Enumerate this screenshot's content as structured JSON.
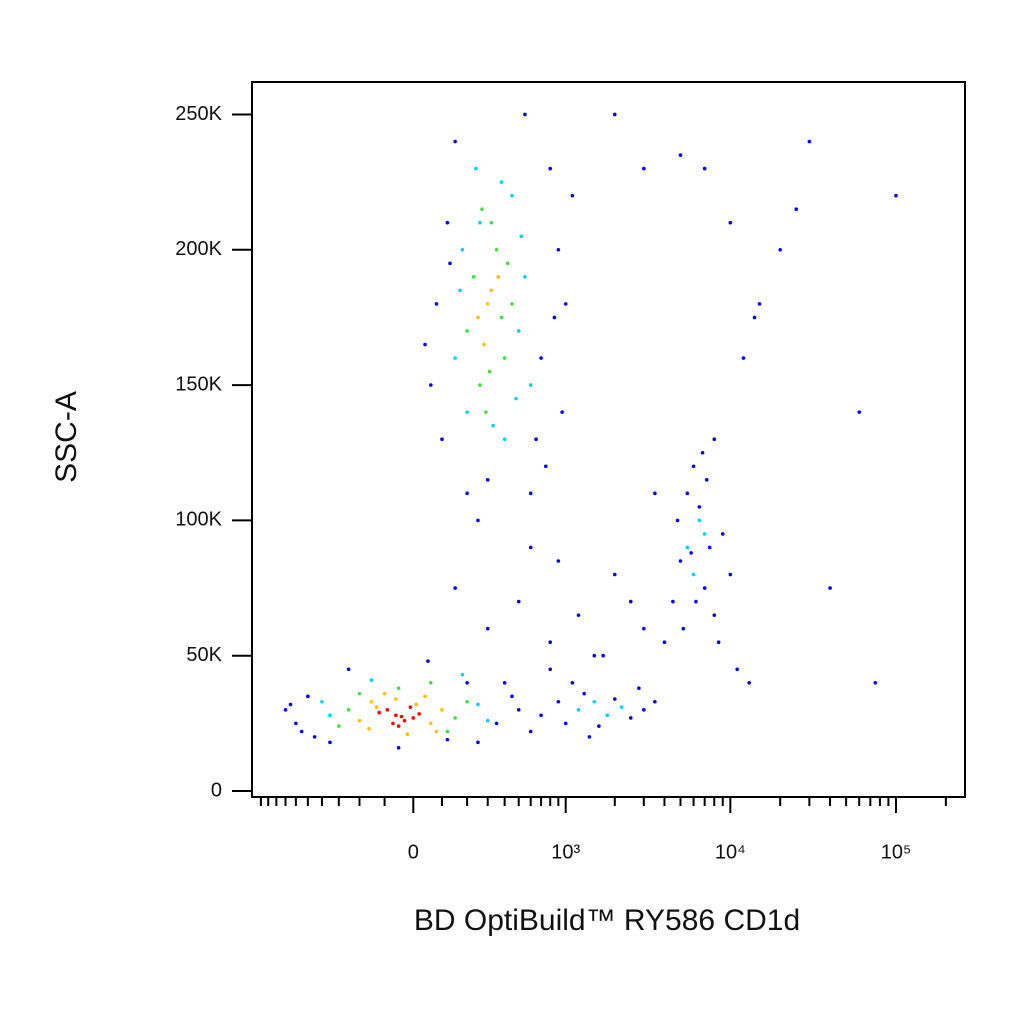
{
  "chart_data": {
    "type": "scatter",
    "x_label": "BD OptiBuild™ RY586 CD1d",
    "y_label": "SSC-A",
    "xscale": "biexponential",
    "xlim": [
      -1135,
      261000
    ],
    "ylim": [
      -2200,
      262000
    ],
    "xticks": [
      0,
      {
        "value": 1000,
        "label": "10³"
      },
      {
        "value": 10000,
        "label": "10⁴"
      },
      {
        "value": 100000,
        "label": "10⁵"
      }
    ],
    "xminorticks": [
      -1000,
      -900,
      -800,
      -700,
      -600,
      -500,
      -400,
      -300,
      -200,
      -100,
      100,
      200,
      300,
      400,
      500,
      600,
      700,
      800,
      900,
      2000,
      3000,
      4000,
      5000,
      6000,
      7000,
      8000,
      9000,
      20000,
      30000,
      40000,
      50000,
      60000,
      70000,
      80000,
      90000,
      200000
    ],
    "yticks": [
      0,
      {
        "value": 50000,
        "label": "50K"
      },
      {
        "value": 100000,
        "label": "100K"
      },
      {
        "value": 150000,
        "label": "150K"
      },
      {
        "value": 200000,
        "label": "200K"
      },
      {
        "value": 250000,
        "label": "250K"
      }
    ],
    "series": [
      {
        "color": "#0000ff",
        "x": [
          80,
          120,
          700,
          900,
          1000,
          60,
          150,
          800,
          650,
          100,
          1100,
          550,
          40,
          750,
          950,
          200,
          600,
          300,
          130,
          850
        ],
        "values": [
          180000,
          210000,
          160000,
          200000,
          180000,
          150000,
          240000,
          230000,
          130000,
          130000,
          220000,
          250000,
          165000,
          120000,
          140000,
          110000,
          110000,
          115000,
          195000,
          175000
        ]
      },
      {
        "color": "#0000ff",
        "x": [
          -600,
          -500,
          350,
          450,
          -700,
          500,
          400,
          -450,
          250,
          600,
          700,
          900,
          1000,
          1300,
          1600,
          2000,
          2500,
          3000,
          1100,
          1400,
          800,
          2800,
          1700,
          3500
        ],
        "values": [
          25000,
          35000,
          25000,
          35000,
          30000,
          30000,
          40000,
          20000,
          18000,
          22000,
          28000,
          33000,
          25000,
          36000,
          24000,
          34000,
          27000,
          30000,
          40000,
          20000,
          45000,
          38000,
          50000,
          33000
        ]
      },
      {
        "color": "#0000ff",
        "x": [
          300,
          500,
          800,
          1200,
          2000,
          3000,
          600,
          150,
          1500,
          2500,
          4000,
          250,
          900,
          3500
        ],
        "values": [
          60000,
          70000,
          55000,
          65000,
          80000,
          60000,
          90000,
          75000,
          50000,
          70000,
          55000,
          100000,
          85000,
          110000
        ]
      },
      {
        "color": "#0000ff",
        "x": [
          4500,
          5000,
          5500,
          6000,
          6500,
          7000,
          7500,
          8000,
          9000,
          10000,
          5200,
          6800,
          4800,
          8500,
          7200,
          6200,
          11000,
          13000,
          5800
        ],
        "values": [
          70000,
          85000,
          110000,
          120000,
          105000,
          75000,
          90000,
          65000,
          95000,
          80000,
          60000,
          125000,
          100000,
          55000,
          115000,
          70000,
          45000,
          40000,
          88000
        ]
      },
      {
        "color": "#0000ff",
        "x": [
          2000,
          3000,
          5000,
          7000,
          10000,
          15000,
          20000,
          30000,
          60000,
          75000,
          100000,
          12000,
          14000,
          25000,
          40000,
          8000
        ],
        "values": [
          250000,
          230000,
          235000,
          230000,
          210000,
          180000,
          200000,
          240000,
          140000,
          40000,
          220000,
          160000,
          175000,
          215000,
          75000,
          130000
        ]
      },
      {
        "color": "#0000ff",
        "x": [
          -550,
          -650,
          120,
          200,
          -350,
          -250,
          50,
          -50
        ],
        "values": [
          22000,
          32000,
          19000,
          40000,
          18000,
          45000,
          48000,
          16000
        ]
      },
      {
        "color": "#00d0ff",
        "x": [
          150,
          500,
          180,
          550,
          450,
          240,
          600,
          330,
          380,
          200,
          480,
          260,
          520,
          170,
          400,
          -350,
          250,
          -400,
          300,
          -150,
          180,
          1200,
          1800,
          1500,
          2200,
          5500,
          6500,
          6000,
          7000
        ],
        "values": [
          160000,
          170000,
          200000,
          190000,
          220000,
          230000,
          150000,
          135000,
          225000,
          140000,
          145000,
          210000,
          205000,
          185000,
          130000,
          28000,
          32000,
          33000,
          26000,
          41000,
          43000,
          30000,
          28000,
          33000,
          31000,
          90000,
          100000,
          80000,
          95000
        ]
      },
      {
        "color": "#40e040",
        "x": [
          -250,
          150,
          -300,
          200,
          -50,
          120,
          -200,
          60,
          200,
          350,
          400,
          260,
          320,
          450,
          230,
          290,
          380,
          420,
          310,
          270
        ],
        "values": [
          30000,
          27000,
          24000,
          33000,
          38000,
          22000,
          36000,
          40000,
          170000,
          200000,
          160000,
          150000,
          210000,
          180000,
          190000,
          140000,
          175000,
          195000,
          155000,
          215000
        ]
      },
      {
        "color": "#ffc000",
        "x": [
          -150,
          60,
          -200,
          100,
          -20,
          40,
          -100,
          -160,
          80,
          -60,
          10,
          -130,
          250,
          320,
          280,
          360,
          300
        ],
        "values": [
          33000,
          25000,
          26000,
          30000,
          21000,
          35000,
          36000,
          23000,
          22000,
          34000,
          32000,
          31000,
          175000,
          185000,
          165000,
          190000,
          180000
        ]
      },
      {
        "color": "#ff0000",
        "x": [
          -60,
          -30,
          -90,
          0,
          -50,
          -120,
          20,
          -10,
          -70,
          -40
        ],
        "values": [
          28000,
          26000,
          30000,
          27000,
          24000,
          29000,
          28500,
          31000,
          25000,
          27500
        ]
      }
    ]
  }
}
